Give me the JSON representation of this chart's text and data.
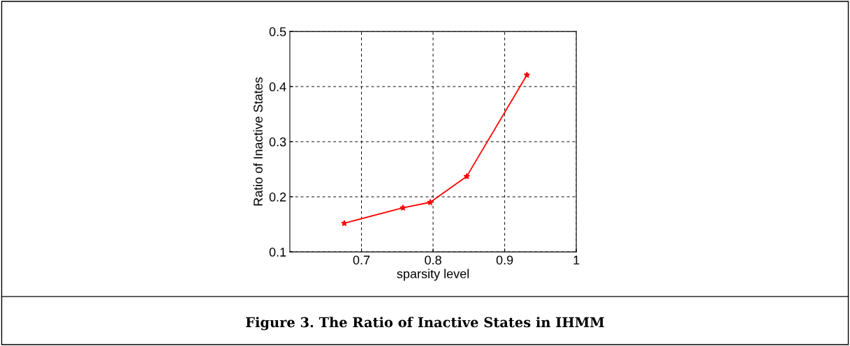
{
  "chart_data": {
    "type": "line",
    "xlabel": "sparsity level",
    "ylabel": "Ratio of Inactive States",
    "x": [
      0.676,
      0.758,
      0.796,
      0.847,
      0.931
    ],
    "series": [
      {
        "color": "#ff0000",
        "values": [
          0.152,
          0.18,
          0.19,
          0.237,
          0.421
        ]
      }
    ],
    "xlim": [
      0.6,
      1
    ],
    "xticks": [
      0.7,
      0.8,
      0.9,
      1
    ],
    "ylim": [
      0.1,
      0.5
    ],
    "yticks": [
      0.1,
      0.2,
      0.3,
      0.4,
      0.5
    ],
    "grid": true,
    "marker": "star",
    "line_style": "solid",
    "annotations": [
      "Figure 3. The Ratio of Inactive States in IHMM"
    ]
  }
}
